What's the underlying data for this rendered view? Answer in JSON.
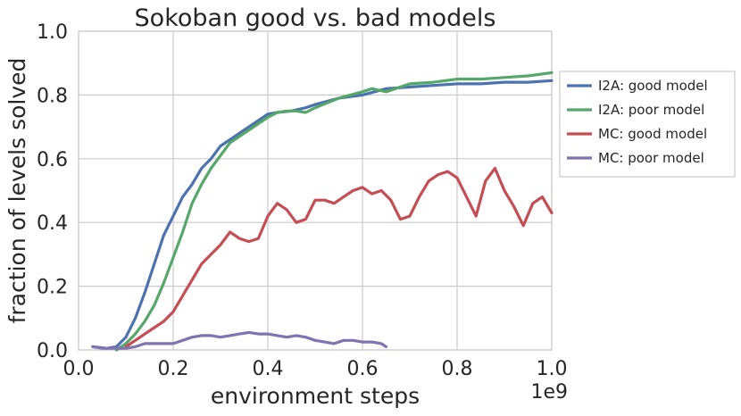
{
  "chart_data": {
    "type": "line",
    "title": "Sokoban good vs. bad models",
    "xlabel": "environment steps",
    "ylabel": "fraction of levels solved",
    "x_scale_label": "1e9",
    "xlim": [
      0.0,
      1.0
    ],
    "ylim": [
      0.0,
      1.0
    ],
    "x_ticks": [
      "0.0",
      "0.2",
      "0.4",
      "0.6",
      "0.8",
      "1.0"
    ],
    "y_ticks": [
      "0.0",
      "0.2",
      "0.4",
      "0.6",
      "0.8",
      "1.0"
    ],
    "grid": true,
    "legend_position": "outside-right",
    "series": [
      {
        "name": "I2A: good model",
        "color": "#4c72b0",
        "x": [
          0.03,
          0.06,
          0.08,
          0.1,
          0.12,
          0.14,
          0.16,
          0.18,
          0.2,
          0.22,
          0.24,
          0.26,
          0.28,
          0.3,
          0.32,
          0.34,
          0.36,
          0.38,
          0.4,
          0.42,
          0.45,
          0.48,
          0.5,
          0.55,
          0.6,
          0.65,
          0.7,
          0.75,
          0.8,
          0.85,
          0.9,
          0.95,
          1.0
        ],
        "y": [
          0.01,
          0.005,
          0.01,
          0.04,
          0.1,
          0.18,
          0.27,
          0.36,
          0.42,
          0.48,
          0.52,
          0.57,
          0.6,
          0.64,
          0.66,
          0.68,
          0.7,
          0.72,
          0.74,
          0.745,
          0.75,
          0.76,
          0.77,
          0.79,
          0.8,
          0.82,
          0.825,
          0.83,
          0.835,
          0.835,
          0.84,
          0.84,
          0.845
        ]
      },
      {
        "name": "I2A: poor model",
        "color": "#55a868",
        "x": [
          0.08,
          0.1,
          0.12,
          0.14,
          0.16,
          0.18,
          0.2,
          0.22,
          0.24,
          0.26,
          0.28,
          0.3,
          0.32,
          0.34,
          0.36,
          0.38,
          0.4,
          0.42,
          0.44,
          0.46,
          0.48,
          0.5,
          0.55,
          0.6,
          0.62,
          0.65,
          0.7,
          0.75,
          0.8,
          0.85,
          0.9,
          0.95,
          1.0
        ],
        "y": [
          0.0,
          0.02,
          0.05,
          0.09,
          0.14,
          0.21,
          0.29,
          0.37,
          0.46,
          0.52,
          0.57,
          0.61,
          0.65,
          0.67,
          0.69,
          0.71,
          0.73,
          0.745,
          0.75,
          0.75,
          0.745,
          0.76,
          0.79,
          0.81,
          0.82,
          0.81,
          0.835,
          0.84,
          0.85,
          0.85,
          0.855,
          0.86,
          0.87
        ]
      },
      {
        "name": "MC: good model",
        "color": "#c44e52",
        "x": [
          0.1,
          0.12,
          0.14,
          0.16,
          0.18,
          0.2,
          0.22,
          0.24,
          0.26,
          0.28,
          0.3,
          0.32,
          0.34,
          0.36,
          0.38,
          0.4,
          0.42,
          0.44,
          0.46,
          0.48,
          0.5,
          0.52,
          0.54,
          0.56,
          0.58,
          0.6,
          0.62,
          0.64,
          0.66,
          0.68,
          0.7,
          0.72,
          0.74,
          0.76,
          0.78,
          0.8,
          0.82,
          0.84,
          0.86,
          0.88,
          0.9,
          0.92,
          0.94,
          0.96,
          0.98,
          1.0
        ],
        "y": [
          0.01,
          0.03,
          0.05,
          0.07,
          0.09,
          0.12,
          0.17,
          0.22,
          0.27,
          0.3,
          0.33,
          0.37,
          0.35,
          0.34,
          0.35,
          0.42,
          0.46,
          0.44,
          0.4,
          0.41,
          0.47,
          0.47,
          0.46,
          0.48,
          0.5,
          0.51,
          0.49,
          0.5,
          0.47,
          0.41,
          0.42,
          0.48,
          0.53,
          0.55,
          0.56,
          0.54,
          0.48,
          0.42,
          0.53,
          0.57,
          0.5,
          0.45,
          0.39,
          0.46,
          0.48,
          0.43
        ]
      },
      {
        "name": "MC: poor model",
        "color": "#8172b2",
        "x": [
          0.03,
          0.05,
          0.08,
          0.1,
          0.12,
          0.14,
          0.16,
          0.18,
          0.2,
          0.22,
          0.24,
          0.26,
          0.28,
          0.3,
          0.32,
          0.34,
          0.36,
          0.38,
          0.4,
          0.42,
          0.44,
          0.46,
          0.48,
          0.5,
          0.52,
          0.54,
          0.56,
          0.58,
          0.6,
          0.62,
          0.64,
          0.65
        ],
        "y": [
          0.01,
          0.005,
          0.005,
          0.005,
          0.01,
          0.02,
          0.02,
          0.02,
          0.02,
          0.03,
          0.04,
          0.045,
          0.045,
          0.04,
          0.045,
          0.05,
          0.055,
          0.05,
          0.05,
          0.045,
          0.04,
          0.045,
          0.04,
          0.03,
          0.025,
          0.02,
          0.03,
          0.03,
          0.025,
          0.025,
          0.02,
          0.01
        ]
      }
    ]
  }
}
